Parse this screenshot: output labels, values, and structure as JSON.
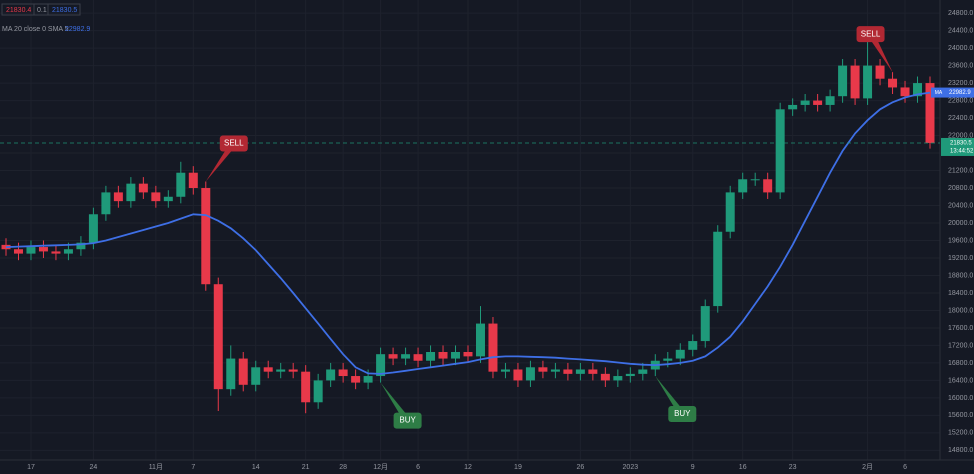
{
  "chart_data": {
    "type": "candlestick",
    "legend_values": [
      "21830.4",
      "0.1",
      "21830.5"
    ],
    "indicator_label": "MA 20 close 0 SMA 5",
    "indicator_value": "22982.9",
    "price_label": "21830.5",
    "countdown": "13:44:52",
    "categories": [
      null,
      null,
      "17",
      null,
      null,
      null,
      null,
      "24",
      null,
      null,
      null,
      null,
      "11月",
      null,
      null,
      "7",
      null,
      null,
      null,
      null,
      "14",
      null,
      null,
      null,
      "21",
      null,
      null,
      "28",
      null,
      null,
      "12月",
      null,
      null,
      "6",
      null,
      null,
      null,
      "12",
      null,
      null,
      null,
      "19",
      null,
      null,
      null,
      null,
      "26",
      null,
      null,
      null,
      "2023",
      null,
      null,
      null,
      null,
      "9",
      null,
      null,
      null,
      "16",
      null,
      null,
      null,
      "23",
      null,
      null,
      null,
      null,
      null,
      "2月",
      null,
      null,
      "6",
      null,
      null
    ],
    "open": [
      19500,
      19400,
      19300,
      19450,
      19350,
      19300,
      19400,
      19550,
      20200,
      20700,
      20500,
      20900,
      20700,
      20500,
      20600,
      21150,
      20800,
      18600,
      16200,
      16900,
      16300,
      16700,
      16600,
      16650,
      16600,
      15900,
      16400,
      16650,
      16500,
      16350,
      16500,
      17000,
      16900,
      17000,
      16850,
      17050,
      16900,
      17050,
      16950,
      17700,
      16600,
      16650,
      16400,
      16700,
      16600,
      16650,
      16550,
      16650,
      16550,
      16400,
      16500,
      16550,
      16650,
      16850,
      16900,
      17100,
      17300,
      18100,
      19800,
      20700,
      21000,
      21000,
      20700,
      22600,
      22700,
      22800,
      22700,
      22900,
      23600,
      22850,
      23600,
      23300,
      23100,
      22900,
      23200
    ],
    "high": [
      19650,
      19550,
      19600,
      19600,
      19500,
      19550,
      19700,
      20350,
      20850,
      20850,
      21050,
      21050,
      20850,
      20750,
      21400,
      21300,
      20950,
      18750,
      17200,
      17050,
      16850,
      16850,
      16800,
      16800,
      16750,
      16550,
      16800,
      16800,
      16650,
      16650,
      17150,
      17150,
      17150,
      17150,
      17200,
      17200,
      17200,
      17200,
      18100,
      17850,
      16800,
      16800,
      16850,
      16850,
      16800,
      16800,
      16800,
      16800,
      16700,
      16650,
      16700,
      16800,
      17000,
      17050,
      17250,
      17450,
      18250,
      19950,
      20850,
      21150,
      21150,
      21150,
      22750,
      22850,
      22950,
      22950,
      23050,
      23750,
      23750,
      24200,
      23750,
      23450,
      23250,
      23350,
      23350
    ],
    "low": [
      19250,
      19150,
      19150,
      19200,
      19150,
      19150,
      19250,
      19400,
      20050,
      20350,
      20350,
      20550,
      20350,
      20350,
      20450,
      20650,
      18450,
      15700,
      16050,
      16150,
      16150,
      16450,
      16450,
      16450,
      15650,
      15750,
      16250,
      16350,
      16200,
      16200,
      16350,
      16750,
      16750,
      16700,
      16700,
      16750,
      16750,
      16800,
      16800,
      16450,
      16450,
      16250,
      16250,
      16450,
      16450,
      16400,
      16400,
      16400,
      16250,
      16250,
      16350,
      16400,
      16500,
      16700,
      16750,
      16950,
      17150,
      17950,
      19650,
      20550,
      20850,
      20550,
      20550,
      22450,
      22550,
      22550,
      22550,
      22750,
      22700,
      22700,
      23150,
      22950,
      22750,
      22750,
      21700
    ],
    "close": [
      19400,
      19300,
      19450,
      19350,
      19300,
      19400,
      19550,
      20200,
      20700,
      20500,
      20900,
      20700,
      20500,
      20600,
      21150,
      20800,
      18600,
      16200,
      16900,
      16300,
      16700,
      16600,
      16650,
      16600,
      15900,
      16400,
      16650,
      16500,
      16350,
      16500,
      17000,
      16900,
      17000,
      16850,
      17050,
      16900,
      17050,
      16950,
      17700,
      16600,
      16650,
      16400,
      16700,
      16600,
      16650,
      16550,
      16650,
      16550,
      16400,
      16500,
      16550,
      16650,
      16850,
      16900,
      17100,
      17300,
      18100,
      19800,
      20700,
      21000,
      21000,
      20700,
      22600,
      22700,
      22800,
      22700,
      22900,
      23600,
      22850,
      23600,
      23300,
      23100,
      22900,
      23200,
      21830.5
    ],
    "up_color": "#1f9a7a",
    "down_color": "#e8394a",
    "series": [
      {
        "name": "MA",
        "color": "#3e6fe6",
        "values": [
          19450,
          19460,
          19470,
          19480,
          19490,
          19500,
          19510,
          19540,
          19600,
          19680,
          19760,
          19840,
          19920,
          20000,
          20100,
          20200,
          20180,
          20050,
          19880,
          19650,
          19380,
          19060,
          18740,
          18400,
          18050,
          17700,
          17350,
          17000,
          16700,
          16560,
          16550,
          16580,
          16620,
          16660,
          16700,
          16740,
          16780,
          16820,
          16880,
          16930,
          16950,
          16950,
          16940,
          16930,
          16920,
          16900,
          16880,
          16860,
          16840,
          16810,
          16780,
          16760,
          16750,
          16770,
          16800,
          16850,
          16950,
          17150,
          17400,
          17750,
          18150,
          18550,
          19000,
          19500,
          20050,
          20600,
          21150,
          21650,
          22050,
          22350,
          22600,
          22760,
          22870,
          22940,
          22982.9
        ]
      }
    ],
    "annotations": [
      {
        "text": "SELL",
        "index": 16,
        "kind": "sell"
      },
      {
        "text": "BUY",
        "index": 30,
        "kind": "buy"
      },
      {
        "text": "BUY",
        "index": 52,
        "kind": "buy"
      },
      {
        "text": "SELL",
        "index": 71,
        "kind": "sell"
      }
    ],
    "ylim": [
      14580,
      25100
    ],
    "yticks": [
      {
        "value": 14800,
        "label": "14800.0"
      },
      {
        "value": 15200,
        "label": "15200.0"
      },
      {
        "value": 15600,
        "label": "15600.0"
      },
      {
        "value": 16000,
        "label": "16000.0"
      },
      {
        "value": 16400,
        "label": "16400.0"
      },
      {
        "value": 16800,
        "label": "16800.0"
      },
      {
        "value": 17200,
        "label": "17200.0"
      },
      {
        "value": 17600,
        "label": "17600.0"
      },
      {
        "value": 18000,
        "label": "18000.0"
      },
      {
        "value": 18400,
        "label": "18400.0"
      },
      {
        "value": 18800,
        "label": "18800.0"
      },
      {
        "value": 19200,
        "label": "19200.0"
      },
      {
        "value": 19600,
        "label": "19600.0"
      },
      {
        "value": 20000,
        "label": "20000.0"
      },
      {
        "value": 20400,
        "label": "20400.0"
      },
      {
        "value": 20800,
        "label": "20800.0"
      },
      {
        "value": 21200,
        "label": "21200.0"
      },
      {
        "value": 21600,
        "label": "21600.0"
      },
      {
        "value": 22000,
        "label": "22000.0"
      },
      {
        "value": 22400,
        "label": "22400.0"
      },
      {
        "value": 22800,
        "label": "22800.0"
      },
      {
        "value": 23200,
        "label": "23200.0"
      },
      {
        "value": 23600,
        "label": "23600.0"
      },
      {
        "value": 24000,
        "label": "24000.0"
      },
      {
        "value": 24400,
        "label": "24400.0"
      },
      {
        "value": 24800,
        "label": "24800.0"
      }
    ],
    "grid": true
  }
}
